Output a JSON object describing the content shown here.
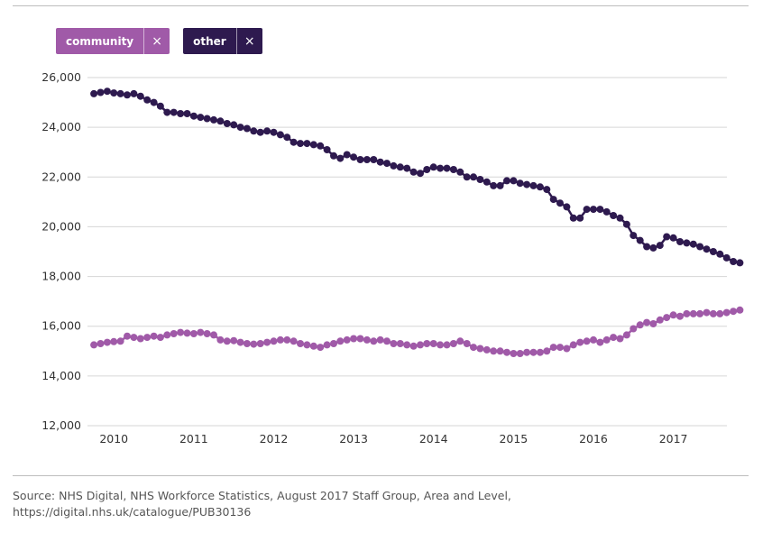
{
  "legend": {
    "community": {
      "label": "community",
      "close": "×",
      "color": "#a05aa8"
    },
    "other": {
      "label": "other",
      "close": "×",
      "color": "#2e1a4f"
    }
  },
  "source": "Source: NHS Digital, NHS Workforce Statistics, August 2017 Staff Group, Area and Level, https://digital.nhs.uk/catalogue/PUB30136",
  "chart_data": {
    "type": "line",
    "title": "",
    "xlabel": "",
    "ylabel": "",
    "ylim": [
      12000,
      26000
    ],
    "yticks": [
      12000,
      14000,
      16000,
      18000,
      20000,
      22000,
      24000,
      26000
    ],
    "ytick_labels": [
      "12,000",
      "14,000",
      "16,000",
      "18,000",
      "20,000",
      "22,000",
      "24,000",
      "26,000"
    ],
    "xlim": [
      2009.67,
      2017.67
    ],
    "xticks": [
      2010,
      2011,
      2012,
      2013,
      2014,
      2015,
      2016,
      2017
    ],
    "xtick_labels": [
      "2010",
      "2011",
      "2012",
      "2013",
      "2014",
      "2015",
      "2016",
      "2017"
    ],
    "grid": true,
    "x_start": 2009.75,
    "x_step": 0.08333,
    "series": [
      {
        "name": "other",
        "color": "#2e1a4f",
        "values": [
          25350,
          25400,
          25450,
          25380,
          25350,
          25300,
          25350,
          25250,
          25100,
          25000,
          24850,
          24600,
          24600,
          24550,
          24550,
          24450,
          24400,
          24350,
          24300,
          24250,
          24150,
          24100,
          24000,
          23950,
          23850,
          23800,
          23850,
          23800,
          23700,
          23600,
          23400,
          23350,
          23350,
          23300,
          23250,
          23100,
          22850,
          22750,
          22900,
          22800,
          22700,
          22700,
          22700,
          22600,
          22550,
          22450,
          22400,
          22350,
          22200,
          22150,
          22300,
          22400,
          22350,
          22350,
          22300,
          22200,
          22000,
          22000,
          21900,
          21800,
          21650,
          21650,
          21850,
          21850,
          21750,
          21700,
          21650,
          21600,
          21500,
          21100,
          20950,
          20800,
          20350,
          20350,
          20700,
          20700,
          20700,
          20600,
          20450,
          20350,
          20100,
          19650,
          19450,
          19200,
          19150,
          19250,
          19600,
          19550,
          19400,
          19350,
          19300,
          19200,
          19100,
          19000,
          18900,
          18750,
          18600,
          18550
        ]
      },
      {
        "name": "community",
        "color": "#a05aa8",
        "values": [
          15250,
          15300,
          15350,
          15380,
          15400,
          15600,
          15550,
          15500,
          15550,
          15600,
          15550,
          15650,
          15700,
          15750,
          15720,
          15700,
          15750,
          15700,
          15650,
          15450,
          15400,
          15420,
          15350,
          15300,
          15280,
          15300,
          15350,
          15400,
          15450,
          15450,
          15400,
          15300,
          15250,
          15200,
          15150,
          15250,
          15300,
          15400,
          15450,
          15500,
          15500,
          15450,
          15400,
          15450,
          15400,
          15300,
          15300,
          15250,
          15200,
          15250,
          15300,
          15300,
          15250,
          15250,
          15300,
          15400,
          15300,
          15150,
          15100,
          15050,
          15000,
          15000,
          14950,
          14900,
          14900,
          14950,
          14950,
          14950,
          15000,
          15150,
          15150,
          15100,
          15250,
          15350,
          15400,
          15450,
          15350,
          15450,
          15550,
          15500,
          15650,
          15900,
          16050,
          16150,
          16100,
          16250,
          16350,
          16450,
          16400,
          16500,
          16500,
          16500,
          16550,
          16500,
          16500,
          16550,
          16600,
          16650
        ]
      }
    ]
  }
}
